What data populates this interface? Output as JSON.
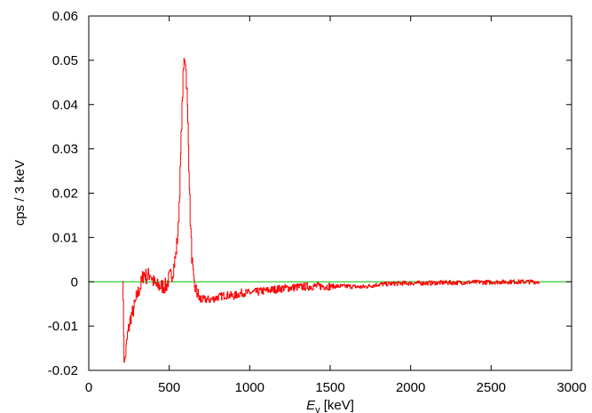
{
  "chart_data": {
    "type": "line",
    "title": "",
    "xlabel": {
      "main": "E",
      "sub": "γ",
      "unit": " [keV]"
    },
    "ylabel": "cps / 3 keV",
    "xlim": [
      0,
      3000
    ],
    "ylim": [
      -0.02,
      0.06
    ],
    "x_ticks": [
      0,
      500,
      1000,
      1500,
      2000,
      2500,
      3000
    ],
    "x_tick_labels": [
      "0",
      "500",
      "1000",
      "1500",
      "2000",
      "2500",
      "3000"
    ],
    "y_ticks": [
      -0.02,
      -0.01,
      0,
      0.01,
      0.02,
      0.03,
      0.04,
      0.05,
      0.06
    ],
    "y_tick_labels": [
      "-0.02",
      "-0.01",
      "0",
      "0.01",
      "0.02",
      "0.03",
      "0.04",
      "0.05",
      "0.06"
    ],
    "grid": false,
    "legend": "none",
    "bin_width_keV": 3,
    "series": [
      {
        "color": "#ff0000",
        "points": [
          [
            210,
            0.0
          ],
          [
            220,
            -0.019
          ],
          [
            240,
            -0.012
          ],
          [
            260,
            -0.008
          ],
          [
            280,
            -0.006
          ],
          [
            300,
            -0.003
          ],
          [
            320,
            -0.001
          ],
          [
            340,
            0.002
          ],
          [
            360,
            0.001
          ],
          [
            380,
            0.002
          ],
          [
            400,
            0.0
          ],
          [
            420,
            -0.001
          ],
          [
            440,
            -0.001
          ],
          [
            460,
            -0.001
          ],
          [
            480,
            -0.001
          ],
          [
            500,
            0.001
          ],
          [
            520,
            0.002
          ],
          [
            540,
            0.006
          ],
          [
            555,
            0.012
          ],
          [
            565,
            0.022
          ],
          [
            575,
            0.035
          ],
          [
            585,
            0.046
          ],
          [
            593,
            0.051
          ],
          [
            600,
            0.05
          ],
          [
            610,
            0.042
          ],
          [
            620,
            0.028
          ],
          [
            630,
            0.014
          ],
          [
            640,
            0.005
          ],
          [
            650,
            0.0
          ],
          [
            665,
            -0.002
          ],
          [
            690,
            -0.004
          ],
          [
            720,
            -0.004
          ],
          [
            760,
            -0.004
          ],
          [
            800,
            -0.0035
          ],
          [
            850,
            -0.003
          ],
          [
            900,
            -0.0032
          ],
          [
            950,
            -0.0025
          ],
          [
            1000,
            -0.0025
          ],
          [
            1100,
            -0.002
          ],
          [
            1200,
            -0.0015
          ],
          [
            1300,
            -0.0012
          ],
          [
            1400,
            -0.001
          ],
          [
            1500,
            -0.001
          ],
          [
            1600,
            -0.001
          ],
          [
            1700,
            -0.0012
          ],
          [
            1800,
            -0.0006
          ],
          [
            1900,
            -0.0004
          ],
          [
            2000,
            -0.0003
          ],
          [
            2100,
            -0.0003
          ],
          [
            2200,
            -0.0002
          ],
          [
            2300,
            -0.0002
          ],
          [
            2400,
            -0.0001
          ],
          [
            2500,
            -0.0001
          ],
          [
            2600,
            0.0
          ],
          [
            2700,
            0.0
          ],
          [
            2800,
            0.0
          ]
        ]
      },
      {
        "color": "#00c000",
        "points": [
          [
            0,
            0.0
          ],
          [
            3000,
            0.0
          ]
        ]
      }
    ]
  }
}
